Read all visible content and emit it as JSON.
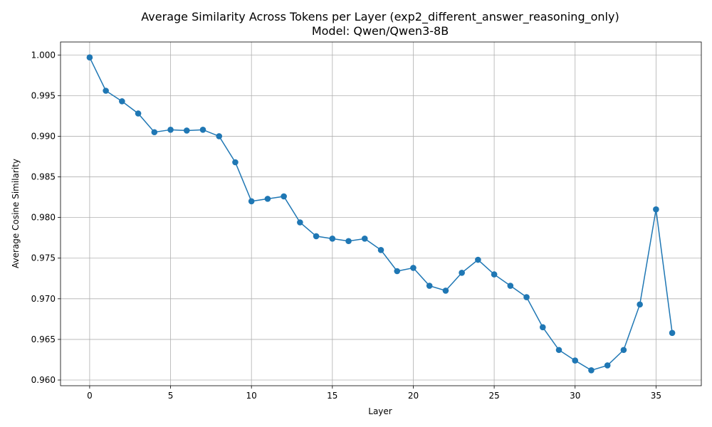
{
  "chart_data": {
    "type": "line",
    "title": "Average Similarity Across Tokens per Layer (exp2_different_answer_reasoning_only)",
    "subtitle": "Model: Qwen/Qwen3-8B",
    "xlabel": "Layer",
    "ylabel": "Average Cosine Similarity",
    "xlim": [
      -1.8,
      37.8
    ],
    "ylim": [
      0.9593,
      1.0016
    ],
    "xticks": [
      0,
      5,
      10,
      15,
      20,
      25,
      30,
      35
    ],
    "xtick_labels": [
      "0",
      "5",
      "10",
      "15",
      "20",
      "25",
      "30",
      "35"
    ],
    "yticks": [
      0.96,
      0.965,
      0.97,
      0.975,
      0.98,
      0.985,
      0.99,
      0.995,
      1.0
    ],
    "ytick_labels": [
      "0.960",
      "0.965",
      "0.970",
      "0.975",
      "0.980",
      "0.985",
      "0.990",
      "0.995",
      "1.000"
    ],
    "grid": true,
    "line_color": "#1f77b4",
    "marker": "circle",
    "x": [
      0,
      1,
      2,
      3,
      4,
      5,
      6,
      7,
      8,
      9,
      10,
      11,
      12,
      13,
      14,
      15,
      16,
      17,
      18,
      19,
      20,
      21,
      22,
      23,
      24,
      25,
      26,
      27,
      28,
      29,
      30,
      31,
      32,
      33,
      34,
      35,
      36
    ],
    "y": [
      0.9997,
      0.9956,
      0.9943,
      0.9928,
      0.9905,
      0.9908,
      0.9907,
      0.9908,
      0.99,
      0.9868,
      0.982,
      0.9823,
      0.9826,
      0.9794,
      0.9777,
      0.9774,
      0.9771,
      0.9774,
      0.976,
      0.9734,
      0.9738,
      0.9716,
      0.971,
      0.9732,
      0.9748,
      0.973,
      0.9716,
      0.9702,
      0.9665,
      0.9637,
      0.9624,
      0.9612,
      0.9618,
      0.9637,
      0.9693,
      0.981,
      0.9658
    ]
  }
}
